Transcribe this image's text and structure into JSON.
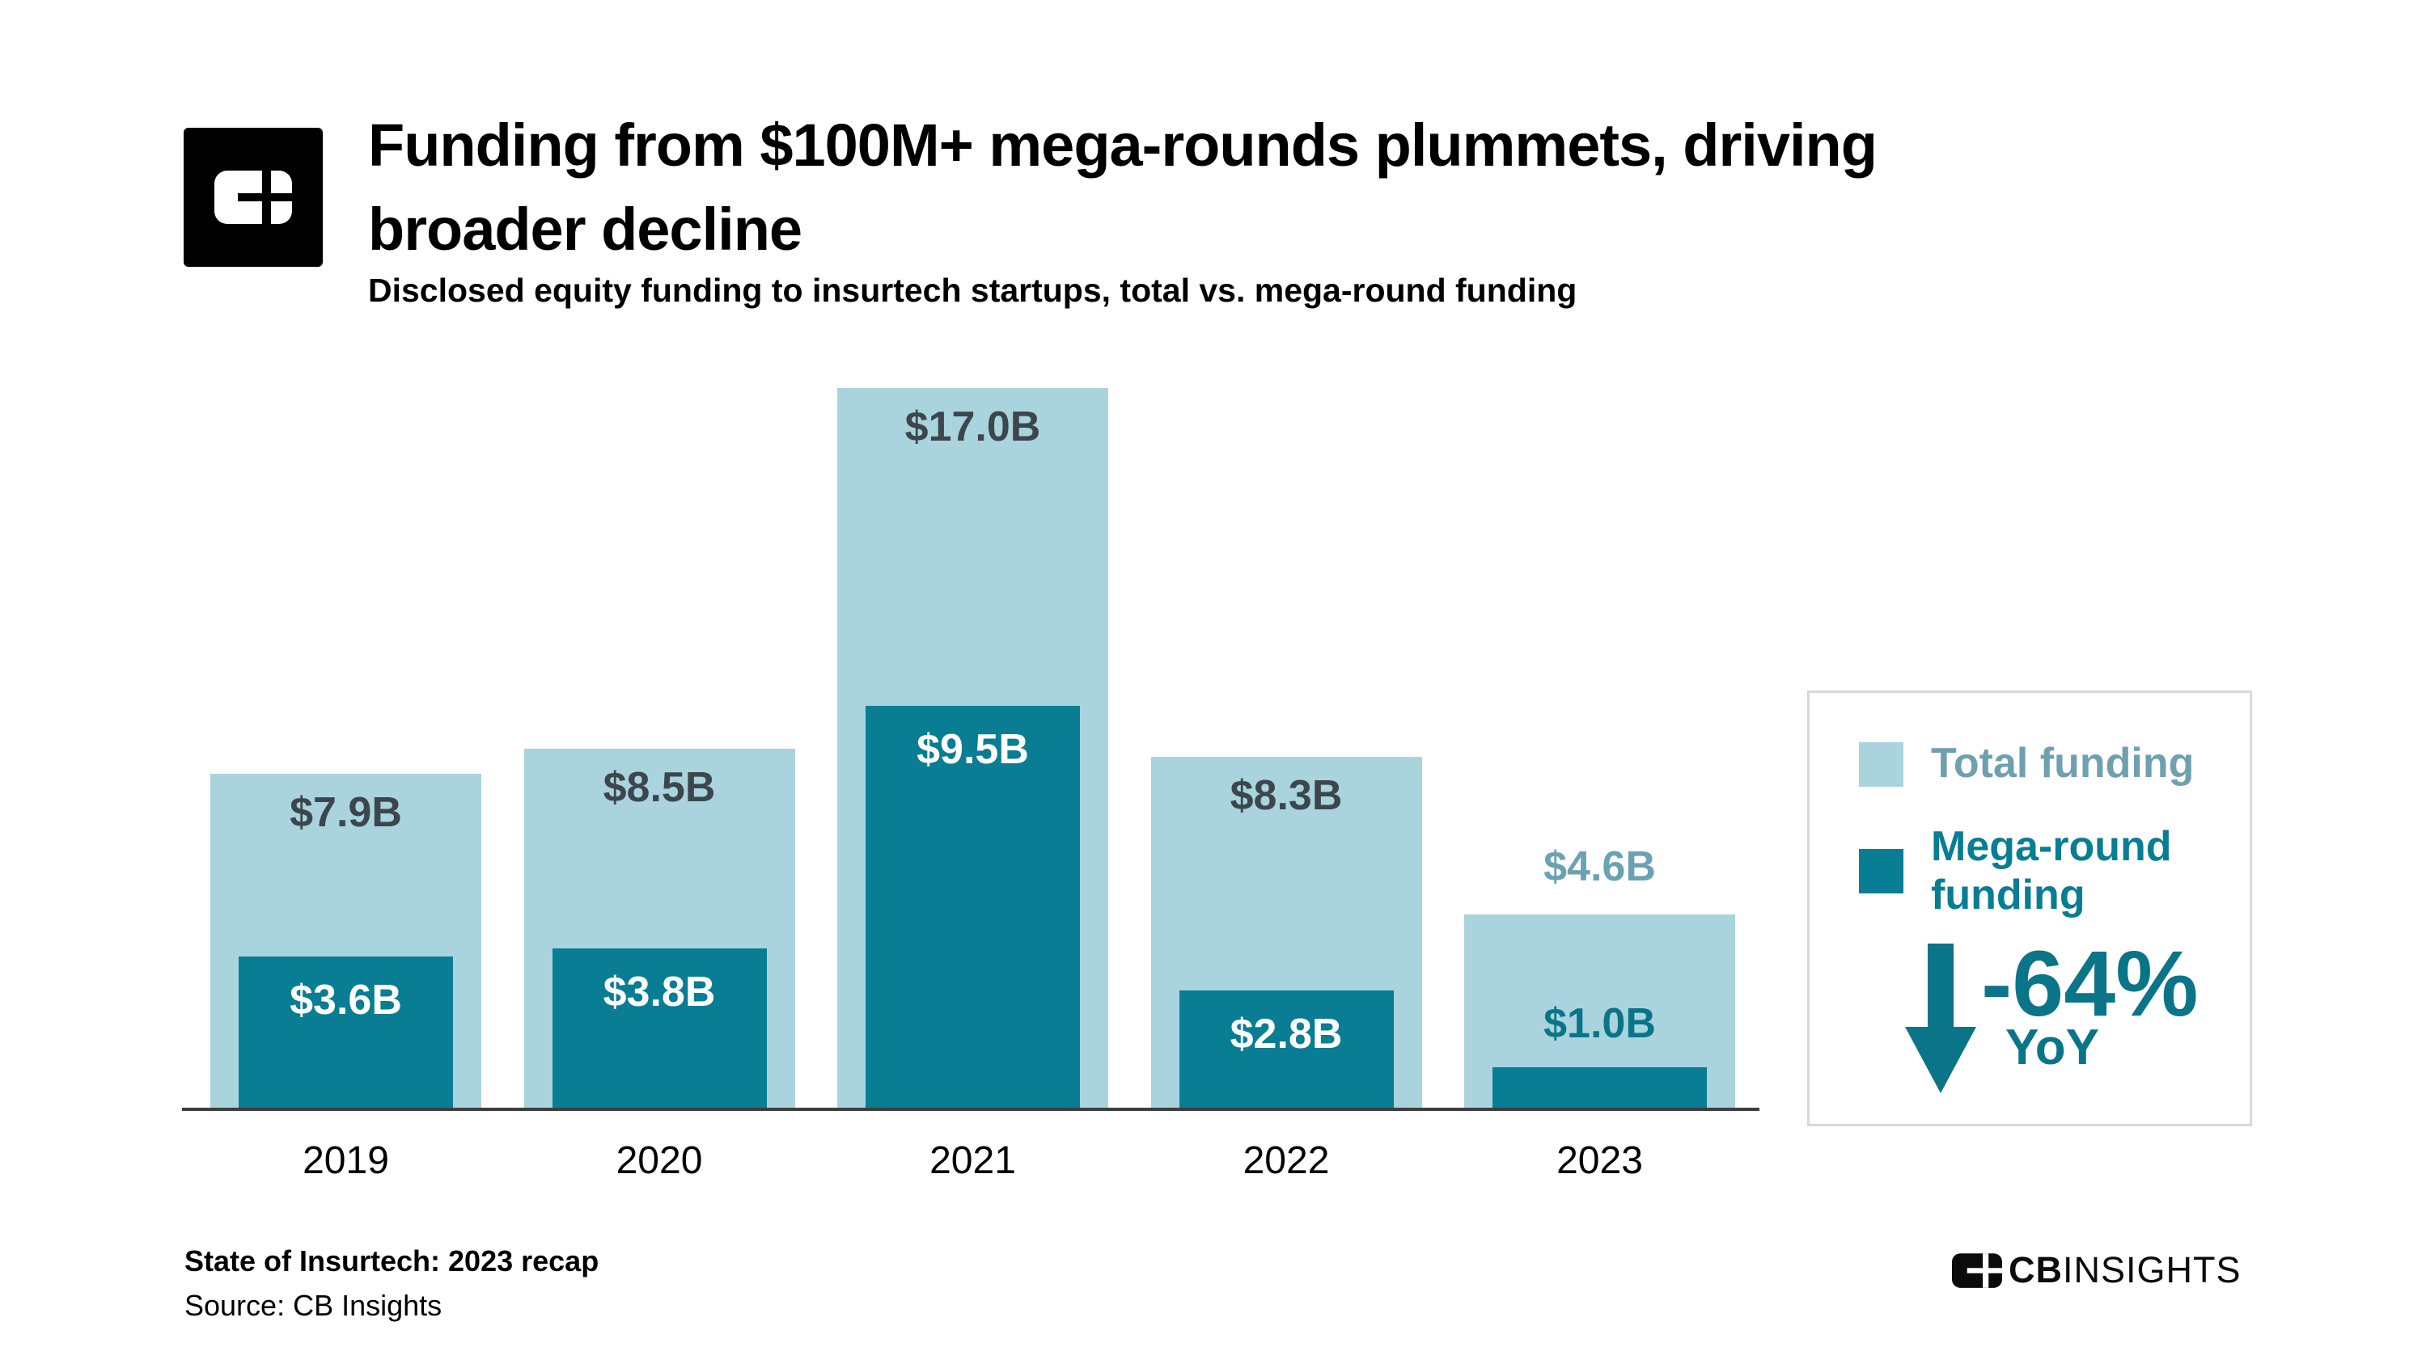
{
  "header": {
    "title_lines": [
      "Funding from $100M+ mega-rounds plummets, driving",
      "broader decline"
    ],
    "subtitle": "Disclosed equity funding to insurtech startups, total vs. mega-round funding"
  },
  "chart_data": {
    "type": "bar",
    "title": "Funding from $100M+ mega-rounds plummets, driving broader decline",
    "subtitle": "Disclosed equity funding to insurtech startups, total vs. mega-round funding",
    "categories": [
      "2019",
      "2020",
      "2021",
      "2022",
      "2023"
    ],
    "unit": "USD billions",
    "series": [
      {
        "name": "Total funding",
        "values": [
          7.9,
          8.5,
          17.0,
          8.3,
          4.6
        ],
        "labels": [
          "$7.9B",
          "$8.5B",
          "$17.0B",
          "$8.3B",
          "$4.6B"
        ],
        "color": "#a9d4de",
        "label_inside": [
          true,
          true,
          true,
          true,
          false
        ]
      },
      {
        "name": "Mega-round funding",
        "values": [
          3.6,
          3.8,
          9.5,
          2.8,
          1.0
        ],
        "labels": [
          "$3.6B",
          "$3.8B",
          "$9.5B",
          "$2.8B",
          "$1.0B"
        ],
        "color": "#087d93",
        "label_inside": [
          true,
          true,
          true,
          true,
          false
        ]
      }
    ],
    "ylim": [
      0,
      17
    ],
    "grid": false,
    "legend_position": "right",
    "annotation": {
      "value": "-64%",
      "label": "YoY",
      "direction": "down"
    }
  },
  "legend": {
    "total_label": "Total funding",
    "mega_label": "Mega-round funding",
    "yoy_value": "-64%",
    "yoy_label": "YoY"
  },
  "colors": {
    "total": "#a9d4de",
    "mega": "#087d93",
    "total_value_label": "#3c464c",
    "outside_total_label": "#69a2b3",
    "outside_mega_label": "#0a7489",
    "legend_total_text": "#6fa0b0",
    "axis": "#3d3d3d",
    "year_label": "#000000",
    "legend_border": "#d9d9d9"
  },
  "footer": {
    "note": "State of Insurtech: 2023 recap",
    "source": "Source: CB Insights",
    "brand_bold": "CB",
    "brand_light": "INSIGHTS"
  },
  "icons": {
    "header_logo": "cb-insights-logo",
    "footer_logo": "cb-insights-logomark",
    "annotation_icon": "down-arrow-icon"
  }
}
